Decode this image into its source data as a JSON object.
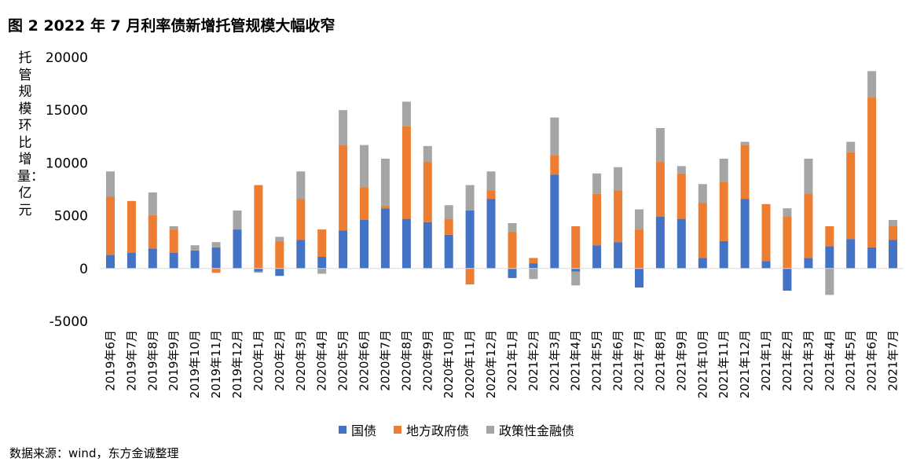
{
  "title": "图 2  2022 年 7 月利率债新增托管规模大幅收窄",
  "source": "数据来源：wind，东方金诚整理",
  "colors": {
    "国债": "#4472C4",
    "地方政府债": "#ED7D31",
    "政策性金融债": "#A5A5A5",
    "axis": "#D9D9D9"
  },
  "chart_data": {
    "type": "bar",
    "stacked": true,
    "title": "",
    "xlabel": "",
    "ylabel": "托管规模环比增量：亿元",
    "ylim": [
      -5000,
      20000
    ],
    "yticks": [
      20000,
      15000,
      10000,
      5000,
      0,
      -5000
    ],
    "grid": false,
    "legend_position": "bottom",
    "categories": [
      "2019年6月",
      "2019年7月",
      "2019年8月",
      "2019年9月",
      "2019年10月",
      "2019年11月",
      "2019年12月",
      "2020年1月",
      "2020年2月",
      "2020年3月",
      "2020年4月",
      "2020年5月",
      "2020年6月",
      "2020年7月",
      "2020年8月",
      "2020年9月",
      "2020年10月",
      "2020年11月",
      "2020年12月",
      "2021年1月",
      "2021年2月",
      "2021年3月",
      "2021年4月",
      "2021年5月",
      "2021年6月",
      "2021年7月",
      "2021年8月",
      "2021年9月",
      "2021年10月",
      "2021年11月",
      "2021年12月",
      "2021年1月",
      "2021年2月",
      "2021年3月",
      "2021年4月",
      "2021年5月",
      "2021年6月",
      "2021年7月"
    ],
    "series": [
      {
        "name": "国债",
        "values": [
          1300,
          1500,
          1900,
          1500,
          1700,
          2000,
          3700,
          -300,
          -700,
          2700,
          1100,
          3600,
          4600,
          5700,
          4700,
          4400,
          3200,
          5500,
          6600,
          -900,
          500,
          8900,
          -300,
          2200,
          2500,
          -1800,
          4900,
          4700,
          1000,
          2600,
          6600,
          700,
          -2100,
          1000,
          2100,
          2800,
          2000,
          2700
        ]
      },
      {
        "name": "地方政府债",
        "values": [
          5500,
          4900,
          3200,
          2200,
          0,
          -400,
          0,
          7900,
          2600,
          3900,
          2600,
          8100,
          3100,
          200,
          8800,
          5700,
          1500,
          -1500,
          800,
          3500,
          500,
          1800,
          4000,
          4900,
          4900,
          3700,
          5200,
          4300,
          5200,
          5600,
          5100,
          5400,
          4900,
          6100,
          1900,
          8200,
          14200,
          1300
        ]
      },
      {
        "name": "政策性金融债",
        "values": [
          2400,
          0,
          2100,
          300,
          500,
          500,
          1800,
          -100,
          400,
          2600,
          -500,
          3300,
          4000,
          4500,
          2300,
          1500,
          1300,
          2400,
          1800,
          800,
          -1000,
          3600,
          -1300,
          1900,
          2200,
          1900,
          3200,
          700,
          1800,
          2200,
          300,
          0,
          800,
          3300,
          -2500,
          1000,
          2500,
          600
        ]
      }
    ]
  }
}
